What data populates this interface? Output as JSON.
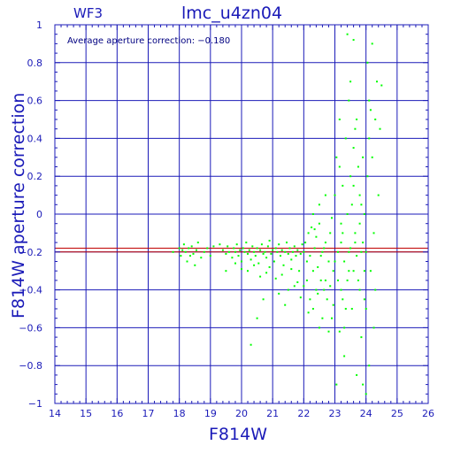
{
  "chart_data": {
    "type": "scatter",
    "title": "lmc_u4zn04",
    "chip_label": "WF3",
    "annotation": "Average aperture correction: −0.180",
    "xlabel": "F814W",
    "ylabel": "F814W aperture correction",
    "xlim": [
      14,
      26
    ],
    "ylim": [
      -1,
      1
    ],
    "x_ticks": [
      "14",
      "15",
      "16",
      "17",
      "18",
      "19",
      "20",
      "21",
      "22",
      "23",
      "24",
      "25",
      "26"
    ],
    "y_ticks": [
      "−1",
      "−0.8",
      "−0.6",
      "−0.4",
      "−0.2",
      "0",
      "0.2",
      "0.4",
      "0.6",
      "0.8",
      "1"
    ],
    "grid": true,
    "reference_lines": [
      {
        "y": -0.18,
        "color": "#c00000"
      },
      {
        "y": -0.2,
        "color": "#c00000"
      }
    ],
    "point_color": "#00ff00",
    "axis_color": "#1b1bb8",
    "series": [
      {
        "points": [
          [
            17.8,
            -0.2
          ],
          [
            18.0,
            -0.18
          ],
          [
            18.05,
            -0.22
          ],
          [
            18.1,
            -0.19
          ],
          [
            18.15,
            -0.16
          ],
          [
            18.2,
            -0.2
          ],
          [
            18.25,
            -0.25
          ],
          [
            18.3,
            -0.18
          ],
          [
            18.35,
            -0.22
          ],
          [
            18.4,
            -0.17
          ],
          [
            18.45,
            -0.21
          ],
          [
            18.5,
            -0.27
          ],
          [
            18.55,
            -0.19
          ],
          [
            18.6,
            -0.15
          ],
          [
            18.7,
            -0.23
          ],
          [
            18.8,
            -0.2
          ],
          [
            18.9,
            -0.18
          ],
          [
            19.0,
            -0.22
          ],
          [
            19.1,
            -0.17
          ],
          [
            19.3,
            -0.16
          ],
          [
            19.4,
            -0.19
          ],
          [
            19.5,
            -0.21
          ],
          [
            19.55,
            -0.17
          ],
          [
            19.6,
            -0.2
          ],
          [
            19.7,
            -0.23
          ],
          [
            19.75,
            -0.18
          ],
          [
            19.8,
            -0.2
          ],
          [
            19.85,
            -0.16
          ],
          [
            19.9,
            -0.22
          ],
          [
            19.95,
            -0.19
          ],
          [
            20.0,
            -0.25
          ],
          [
            20.05,
            -0.18
          ],
          [
            20.1,
            -0.2
          ],
          [
            20.15,
            -0.15
          ],
          [
            20.2,
            -0.21
          ],
          [
            20.25,
            -0.19
          ],
          [
            20.3,
            -0.24
          ],
          [
            20.35,
            -0.17
          ],
          [
            20.4,
            -0.2
          ],
          [
            20.45,
            -0.22
          ],
          [
            20.5,
            -0.18
          ],
          [
            20.55,
            -0.26
          ],
          [
            20.6,
            -0.19
          ],
          [
            20.65,
            -0.16
          ],
          [
            20.7,
            -0.21
          ],
          [
            20.75,
            -0.2
          ],
          [
            20.8,
            -0.23
          ],
          [
            20.85,
            -0.17
          ],
          [
            20.9,
            -0.14
          ],
          [
            20.95,
            -0.21
          ],
          [
            21.0,
            -0.19
          ],
          [
            21.05,
            -0.25
          ],
          [
            21.1,
            -0.18
          ],
          [
            21.15,
            -0.2
          ],
          [
            21.2,
            -0.16
          ],
          [
            21.25,
            -0.22
          ],
          [
            21.3,
            -0.19
          ],
          [
            21.35,
            -0.27
          ],
          [
            21.4,
            -0.2
          ],
          [
            21.45,
            -0.15
          ],
          [
            21.5,
            -0.21
          ],
          [
            21.55,
            -0.18
          ],
          [
            21.6,
            -0.24
          ],
          [
            21.65,
            -0.2
          ],
          [
            21.7,
            -0.17
          ],
          [
            21.75,
            -0.22
          ],
          [
            21.8,
            -0.19
          ],
          [
            21.85,
            -0.3
          ],
          [
            21.9,
            -0.21
          ],
          [
            21.95,
            -0.16
          ],
          [
            20.2,
            -0.3
          ],
          [
            20.6,
            -0.33
          ],
          [
            20.9,
            -0.28
          ],
          [
            21.3,
            -0.32
          ],
          [
            21.6,
            -0.29
          ],
          [
            19.5,
            -0.3
          ],
          [
            20.0,
            -0.29
          ],
          [
            20.4,
            -0.27
          ],
          [
            20.8,
            -0.31
          ],
          [
            21.1,
            -0.34
          ],
          [
            21.2,
            -0.42
          ],
          [
            21.5,
            -0.4
          ],
          [
            21.7,
            -0.38
          ],
          [
            21.9,
            -0.44
          ],
          [
            20.7,
            -0.45
          ],
          [
            20.5,
            -0.55
          ],
          [
            20.3,
            -0.69
          ],
          [
            21.4,
            -0.48
          ],
          [
            21.8,
            -0.36
          ],
          [
            19.8,
            -0.26
          ],
          [
            22.0,
            -0.2
          ],
          [
            22.05,
            -0.15
          ],
          [
            22.1,
            -0.25
          ],
          [
            22.15,
            -0.1
          ],
          [
            22.2,
            -0.22
          ],
          [
            22.25,
            -0.07
          ],
          [
            22.3,
            -0.3
          ],
          [
            22.35,
            -0.18
          ],
          [
            22.4,
            -0.12
          ],
          [
            22.45,
            -0.28
          ],
          [
            22.5,
            -0.05
          ],
          [
            22.55,
            -0.35
          ],
          [
            22.6,
            -0.2
          ],
          [
            22.65,
            -0.4
          ],
          [
            22.7,
            -0.15
          ],
          [
            22.75,
            -0.45
          ],
          [
            22.8,
            -0.25
          ],
          [
            22.85,
            -0.1
          ],
          [
            22.9,
            -0.55
          ],
          [
            22.95,
            -0.3
          ],
          [
            22.1,
            -0.35
          ],
          [
            22.2,
            -0.45
          ],
          [
            22.3,
            -0.5
          ],
          [
            22.4,
            -0.4
          ],
          [
            22.5,
            -0.6
          ],
          [
            22.6,
            -0.55
          ],
          [
            22.7,
            -0.35
          ],
          [
            22.8,
            -0.62
          ],
          [
            22.3,
            0.0
          ],
          [
            22.5,
            0.05
          ],
          [
            22.7,
            0.1
          ],
          [
            22.9,
            -0.02
          ],
          [
            22.0,
            -0.38
          ],
          [
            22.15,
            -0.52
          ],
          [
            22.35,
            -0.08
          ],
          [
            22.55,
            -0.22
          ],
          [
            22.45,
            -0.42
          ],
          [
            22.65,
            -0.18
          ],
          [
            22.85,
            -0.38
          ],
          [
            22.95,
            -0.48
          ],
          [
            23.0,
            0.1
          ],
          [
            23.05,
            0.3
          ],
          [
            23.1,
            -0.2
          ],
          [
            23.15,
            0.25
          ],
          [
            23.2,
            -0.4
          ],
          [
            23.25,
            0.15
          ],
          [
            23.3,
            -0.6
          ],
          [
            23.35,
            0.4
          ],
          [
            23.4,
            0.0
          ],
          [
            23.45,
            -0.3
          ],
          [
            23.5,
            0.2
          ],
          [
            23.55,
            -0.5
          ],
          [
            23.6,
            0.35
          ],
          [
            23.65,
            -0.1
          ],
          [
            23.7,
            0.5
          ],
          [
            23.75,
            -0.35
          ],
          [
            23.8,
            0.1
          ],
          [
            23.85,
            -0.2
          ],
          [
            23.9,
            0.3
          ],
          [
            23.95,
            -0.45
          ],
          [
            23.0,
            -0.25
          ],
          [
            23.1,
            -0.35
          ],
          [
            23.2,
            -0.15
          ],
          [
            23.3,
            -0.25
          ],
          [
            23.4,
            -0.35
          ],
          [
            23.5,
            -0.18
          ],
          [
            23.6,
            -0.3
          ],
          [
            23.7,
            -0.22
          ],
          [
            23.8,
            -0.4
          ],
          [
            23.9,
            -0.15
          ],
          [
            23.05,
            -0.9
          ],
          [
            23.15,
            -0.62
          ],
          [
            23.25,
            -0.45
          ],
          [
            23.45,
            0.6
          ],
          [
            23.55,
            0.05
          ],
          [
            23.65,
            0.45
          ],
          [
            23.75,
            0.25
          ],
          [
            23.85,
            -0.65
          ],
          [
            23.95,
            0.0
          ],
          [
            23.35,
            -0.5
          ],
          [
            24.0,
            -0.2
          ],
          [
            24.05,
            0.2
          ],
          [
            24.1,
            0.6
          ],
          [
            24.15,
            -0.3
          ],
          [
            24.2,
            0.9
          ],
          [
            24.25,
            -0.1
          ],
          [
            24.3,
            0.5
          ],
          [
            24.35,
            0.7
          ],
          [
            24.4,
            0.1
          ],
          [
            24.45,
            0.45
          ],
          [
            24.5,
            0.68
          ],
          [
            24.0,
            -0.5
          ],
          [
            24.1,
            -0.8
          ],
          [
            24.2,
            0.3
          ],
          [
            24.3,
            -0.4
          ],
          [
            24.05,
            0.8
          ],
          [
            24.15,
            0.55
          ],
          [
            24.25,
            -0.6
          ],
          [
            24.0,
            -0.95
          ],
          [
            24.1,
            0.4
          ],
          [
            23.4,
            0.95
          ],
          [
            23.6,
            0.92
          ],
          [
            23.9,
            -0.9
          ],
          [
            23.5,
            0.7
          ],
          [
            23.7,
            -0.85
          ],
          [
            23.3,
            -0.75
          ],
          [
            23.15,
            0.5
          ],
          [
            23.25,
            -0.1
          ],
          [
            23.45,
            -0.2
          ],
          [
            23.65,
            -0.15
          ],
          [
            23.85,
            0.05
          ],
          [
            23.95,
            -0.3
          ],
          [
            23.8,
            -0.05
          ],
          [
            23.2,
            -0.05
          ],
          [
            23.6,
            0.15
          ]
        ]
      }
    ]
  }
}
